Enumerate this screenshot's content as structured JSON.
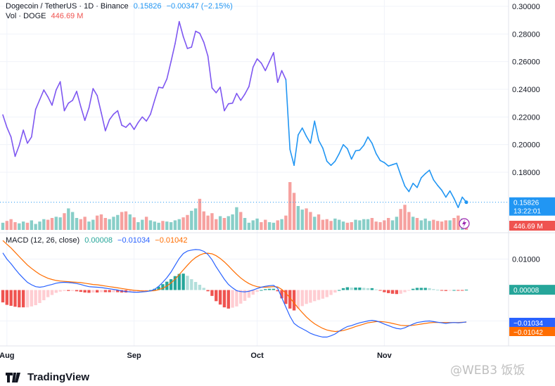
{
  "header": {
    "symbol": "Dogecoin / TetherUS · 1D · Binance",
    "last_price": "0.15826",
    "change": "−0.00347 (−2.15%)",
    "vol_label": "Vol · DOGE",
    "vol_value": "446.69 M",
    "macd_label": "MACD (12, 26, close)",
    "macd_hist": "0.00008",
    "macd_line": "−0.01034",
    "macd_signal": "−0.01042"
  },
  "badges": {
    "price": "0.15826",
    "countdown": "13:22:01",
    "volume": "446.69 M",
    "hist": "0.00008",
    "macd": "−0.01034",
    "signal": "−0.01042"
  },
  "colors": {
    "price_early": "#7e57f1",
    "price_late": "#2196f3",
    "up": "#26a69a",
    "down": "#ef5350",
    "macd": "#2962ff",
    "signal": "#ff6d00",
    "grid": "#f0f3fa"
  },
  "chart_data": {
    "type": "line",
    "price": {
      "ylim": [
        0.15,
        0.3
      ],
      "yticks": [
        "0.30000",
        "0.28000",
        "0.26000",
        "0.24000",
        "0.22000",
        "0.20000",
        "0.18000"
      ],
      "y_tick_values": [
        0.3,
        0.28,
        0.26,
        0.24,
        0.22,
        0.2,
        0.18
      ],
      "values": [
        0.2215,
        0.2125,
        0.2055,
        0.1915,
        0.1995,
        0.2105,
        0.201,
        0.2055,
        0.2255,
        0.2325,
        0.2395,
        0.2345,
        0.2285,
        0.2395,
        0.2455,
        0.2245,
        0.23,
        0.232,
        0.2385,
        0.2275,
        0.2175,
        0.2265,
        0.2405,
        0.2355,
        0.223,
        0.21,
        0.218,
        0.222,
        0.2245,
        0.214,
        0.2125,
        0.2155,
        0.211,
        0.216,
        0.22,
        0.217,
        0.222,
        0.232,
        0.2415,
        0.241,
        0.2475,
        0.26,
        0.273,
        0.289,
        0.278,
        0.2695,
        0.2705,
        0.282,
        0.2805,
        0.274,
        0.264,
        0.241,
        0.2375,
        0.2415,
        0.2245,
        0.2295,
        0.23,
        0.237,
        0.232,
        0.2365,
        0.242,
        0.256,
        0.262,
        0.259,
        0.2535,
        0.26,
        0.2665,
        0.245,
        0.2535,
        0.247,
        0.1965,
        0.185,
        0.207,
        0.212,
        0.206,
        0.201,
        0.217,
        0.203,
        0.1975,
        0.188,
        0.185,
        0.188,
        0.1935,
        0.2,
        0.197,
        0.1895,
        0.1955,
        0.196,
        0.1995,
        0.2055,
        0.201,
        0.1935,
        0.1885,
        0.187,
        0.1845,
        0.1855,
        0.1865,
        0.178,
        0.17,
        0.166,
        0.172,
        0.169,
        0.176,
        0.179,
        0.1815,
        0.1745,
        0.1705,
        0.167,
        0.162,
        0.1665,
        0.161,
        0.1545,
        0.162,
        0.1583
      ]
    },
    "volume": {
      "values": [
        0.12,
        0.15,
        0.18,
        0.13,
        0.11,
        0.14,
        0.12,
        0.16,
        0.1,
        0.14,
        0.18,
        0.17,
        0.2,
        0.22,
        0.21,
        0.28,
        0.36,
        0.3,
        0.2,
        0.18,
        0.22,
        0.14,
        0.17,
        0.24,
        0.26,
        0.2,
        0.18,
        0.22,
        0.25,
        0.3,
        0.31,
        0.26,
        0.21,
        0.13,
        0.17,
        0.22,
        0.16,
        0.14,
        0.12,
        0.15,
        0.14,
        0.13,
        0.16,
        0.18,
        0.21,
        0.25,
        0.32,
        0.36,
        0.52,
        0.31,
        0.24,
        0.28,
        0.18,
        0.23,
        0.2,
        0.23,
        0.26,
        0.38,
        0.3,
        0.2,
        0.12,
        0.16,
        0.19,
        0.13,
        0.17,
        0.13,
        0.12,
        0.16,
        0.18,
        0.24,
        0.8,
        0.62,
        0.4,
        0.34,
        0.36,
        0.3,
        0.22,
        0.26,
        0.17,
        0.18,
        0.15,
        0.19,
        0.17,
        0.14,
        0.12,
        0.13,
        0.17,
        0.16,
        0.18,
        0.18,
        0.2,
        0.14,
        0.13,
        0.16,
        0.2,
        0.16,
        0.22,
        0.35,
        0.42,
        0.3,
        0.22,
        0.2,
        0.16,
        0.19,
        0.15,
        0.17,
        0.15,
        0.14,
        0.16,
        0.16,
        0.2,
        0.24,
        0.19,
        0.13
      ],
      "ymax": 1.0
    },
    "macd": {
      "ylim": [
        -0.016,
        0.016
      ],
      "yticks": [
        "0.01000"
      ],
      "y_tick_values": [
        0.01
      ],
      "macd_line": [
        0.012,
        0.01,
        0.0085,
        0.0068,
        0.0052,
        0.0038,
        0.0025,
        0.0017,
        0.0011,
        0.0009,
        0.0011,
        0.0015,
        0.0018,
        0.0022,
        0.0024,
        0.0025,
        0.0024,
        0.0023,
        0.0021,
        0.0018,
        0.0014,
        0.0011,
        0.001,
        0.0009,
        0.0008,
        0.0006,
        0.0004,
        0.0002,
        0.0,
        -0.0003,
        -0.0005,
        -0.0006,
        -0.0007,
        -0.0007,
        -0.0006,
        -0.0005,
        -0.0003,
        0.0002,
        0.0012,
        0.0025,
        0.004,
        0.0058,
        0.008,
        0.0102,
        0.0118,
        0.0126,
        0.0129,
        0.0131,
        0.013,
        0.0125,
        0.0115,
        0.0098,
        0.0075,
        0.0055,
        0.0035,
        0.0018,
        0.0007,
        -0.0002,
        -0.0005,
        -0.0006,
        -0.0004,
        0.0,
        0.0005,
        0.0009,
        0.0012,
        0.0014,
        0.0015,
        0.0006,
        -0.0025,
        -0.0055,
        -0.0085,
        -0.0108,
        -0.0118,
        -0.0125,
        -0.0132,
        -0.014,
        -0.0145,
        -0.0149,
        -0.0152,
        -0.0152,
        -0.0148,
        -0.0142,
        -0.0133,
        -0.0125,
        -0.0118,
        -0.0115,
        -0.011,
        -0.0106,
        -0.0103,
        -0.01,
        -0.0098,
        -0.01,
        -0.0104,
        -0.011,
        -0.0115,
        -0.012,
        -0.0124,
        -0.0126,
        -0.0122,
        -0.0116,
        -0.011,
        -0.0105,
        -0.0103,
        -0.0101,
        -0.01,
        -0.0102,
        -0.0104,
        -0.0106,
        -0.0108,
        -0.0106,
        -0.0105,
        -0.0106,
        -0.0105,
        -0.0103
      ],
      "signal_line": [
        0.016,
        0.0148,
        0.0136,
        0.0122,
        0.0108,
        0.0094,
        0.0081,
        0.007,
        0.006,
        0.0051,
        0.0044,
        0.0038,
        0.0034,
        0.0031,
        0.0029,
        0.0028,
        0.0027,
        0.0026,
        0.0025,
        0.0024,
        0.0022,
        0.002,
        0.0018,
        0.0017,
        0.0015,
        0.0013,
        0.0011,
        0.0009,
        0.0007,
        0.0005,
        0.0003,
        0.0001,
        -0.0001,
        -0.0002,
        -0.0003,
        -0.0003,
        -0.0003,
        -0.0002,
        0.0001,
        0.0006,
        0.0013,
        0.0023,
        0.0035,
        0.005,
        0.0065,
        0.008,
        0.0094,
        0.0105,
        0.0113,
        0.0118,
        0.0119,
        0.0117,
        0.0111,
        0.0102,
        0.0091,
        0.0078,
        0.0064,
        0.0051,
        0.0039,
        0.0029,
        0.0021,
        0.0015,
        0.0011,
        0.0009,
        0.0009,
        0.001,
        0.0011,
        0.001,
        0.0002,
        -0.001,
        -0.0025,
        -0.0042,
        -0.0058,
        -0.0073,
        -0.0087,
        -0.0099,
        -0.0109,
        -0.0117,
        -0.0124,
        -0.0129,
        -0.0132,
        -0.0134,
        -0.0133,
        -0.0131,
        -0.0127,
        -0.0123,
        -0.0118,
        -0.0114,
        -0.011,
        -0.0106,
        -0.0104,
        -0.0102,
        -0.0102,
        -0.0103,
        -0.0105,
        -0.0108,
        -0.0111,
        -0.0114,
        -0.0115,
        -0.0115,
        -0.0114,
        -0.0112,
        -0.011,
        -0.0108,
        -0.0106,
        -0.0105,
        -0.0105,
        -0.0105,
        -0.0105,
        -0.0105,
        -0.0105,
        -0.0105,
        -0.0104,
        -0.0104
      ]
    },
    "xticks": [
      {
        "label": "Aug",
        "index": 1
      },
      {
        "label": "Sep",
        "index": 32
      },
      {
        "label": "Oct",
        "index": 62
      },
      {
        "label": "Nov",
        "index": 93
      }
    ],
    "grid": true
  },
  "brand": {
    "name": "TradingView"
  },
  "watermark": "@WEB3 饭饭"
}
